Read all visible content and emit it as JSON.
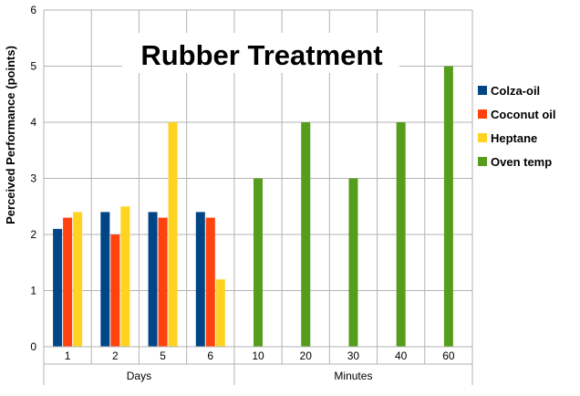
{
  "chart_data": {
    "type": "bar",
    "title": "Rubber Treatment",
    "ylabel": "Perceived Performance (points)",
    "ylim": [
      0,
      6
    ],
    "yticks": [
      0,
      1,
      2,
      3,
      4,
      5,
      6
    ],
    "grid": true,
    "legend_position": "right",
    "categories": [
      "1",
      "2",
      "5",
      "6",
      "10",
      "20",
      "30",
      "40",
      "60"
    ],
    "groups": [
      {
        "label": "Days",
        "categories": [
          "1",
          "2",
          "5",
          "6"
        ]
      },
      {
        "label": "Minutes",
        "categories": [
          "10",
          "20",
          "30",
          "40",
          "60"
        ]
      }
    ],
    "series": [
      {
        "name": "Colza-oil",
        "color": "#004586",
        "values": [
          2.1,
          2.4,
          2.4,
          2.4,
          null,
          null,
          null,
          null,
          null
        ]
      },
      {
        "name": "Coconut oil",
        "color": "#ff420e",
        "values": [
          2.3,
          2.0,
          2.3,
          2.3,
          null,
          null,
          null,
          null,
          null
        ]
      },
      {
        "name": "Heptane",
        "color": "#ffd320",
        "values": [
          2.4,
          2.5,
          4.0,
          1.2,
          null,
          null,
          null,
          null,
          null
        ]
      },
      {
        "name": "Oven temp",
        "color": "#579d1c",
        "values": [
          null,
          null,
          null,
          null,
          3,
          4,
          3,
          4,
          5
        ]
      }
    ]
  }
}
